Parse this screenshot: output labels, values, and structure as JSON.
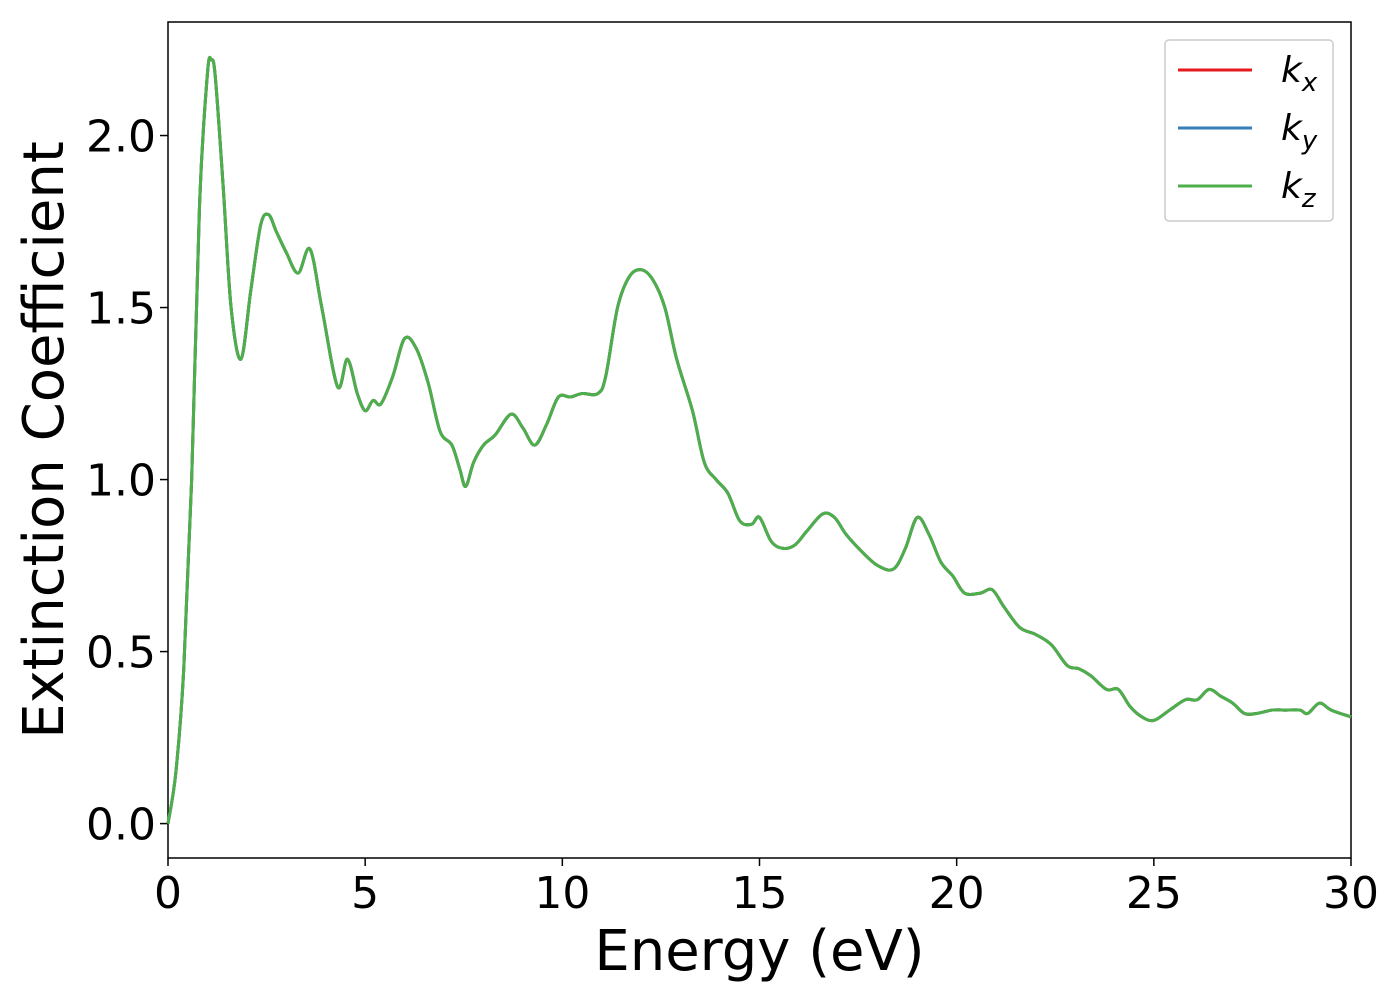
{
  "chart_data": {
    "type": "line",
    "title": "",
    "xlabel": "Energy (eV)",
    "ylabel": "Extinction Coefficient",
    "xlim": [
      0,
      30
    ],
    "ylim": [
      -0.1,
      2.33
    ],
    "xticks": [
      0,
      5,
      10,
      15,
      20,
      25,
      30
    ],
    "xtick_labels": [
      "0",
      "5",
      "10",
      "15",
      "20",
      "25",
      "30"
    ],
    "yticks": [
      0.0,
      0.5,
      1.0,
      1.5,
      2.0
    ],
    "ytick_labels": [
      "0.0",
      "0.5",
      "1.0",
      "1.5",
      "2.0"
    ],
    "grid": false,
    "legend_position": "top-right",
    "x": [
      0,
      0.2,
      0.4,
      0.6,
      0.8,
      1.0,
      1.1,
      1.2,
      1.4,
      1.6,
      1.85,
      2.1,
      2.35,
      2.55,
      2.75,
      3.0,
      3.3,
      3.6,
      3.9,
      4.3,
      4.55,
      4.8,
      5.0,
      5.2,
      5.4,
      5.7,
      6.0,
      6.3,
      6.6,
      6.9,
      7.2,
      7.4,
      7.55,
      7.75,
      8.0,
      8.3,
      8.7,
      9.0,
      9.3,
      9.6,
      9.9,
      10.2,
      10.5,
      10.9,
      11.1,
      11.4,
      11.7,
      12.0,
      12.3,
      12.6,
      12.9,
      13.3,
      13.6,
      13.9,
      14.2,
      14.5,
      14.8,
      15.0,
      15.3,
      15.6,
      15.9,
      16.2,
      16.6,
      16.9,
      17.2,
      17.6,
      18.0,
      18.4,
      18.7,
      19.0,
      19.3,
      19.6,
      19.9,
      20.2,
      20.6,
      20.9,
      21.2,
      21.6,
      22.0,
      22.4,
      22.8,
      23.1,
      23.4,
      23.8,
      24.1,
      24.4,
      24.7,
      25.0,
      25.4,
      25.8,
      26.1,
      26.4,
      26.7,
      27.0,
      27.3,
      27.6,
      28.0,
      28.3,
      28.7,
      28.9,
      29.2,
      29.5,
      30.0
    ],
    "series": [
      {
        "name": "k_x",
        "color": "#e41a1c",
        "values": [
          0.0,
          0.15,
          0.45,
          1.0,
          1.8,
          2.18,
          2.22,
          2.17,
          1.85,
          1.5,
          1.35,
          1.55,
          1.74,
          1.77,
          1.72,
          1.66,
          1.6,
          1.67,
          1.5,
          1.27,
          1.35,
          1.25,
          1.2,
          1.23,
          1.22,
          1.3,
          1.41,
          1.38,
          1.28,
          1.14,
          1.1,
          1.03,
          0.98,
          1.05,
          1.1,
          1.13,
          1.19,
          1.15,
          1.1,
          1.16,
          1.24,
          1.24,
          1.25,
          1.25,
          1.3,
          1.5,
          1.59,
          1.61,
          1.58,
          1.5,
          1.35,
          1.2,
          1.05,
          1.0,
          0.96,
          0.88,
          0.87,
          0.89,
          0.82,
          0.8,
          0.81,
          0.85,
          0.9,
          0.89,
          0.84,
          0.79,
          0.75,
          0.74,
          0.8,
          0.89,
          0.84,
          0.76,
          0.72,
          0.67,
          0.67,
          0.68,
          0.63,
          0.57,
          0.55,
          0.52,
          0.46,
          0.45,
          0.43,
          0.39,
          0.39,
          0.34,
          0.31,
          0.3,
          0.33,
          0.36,
          0.36,
          0.39,
          0.37,
          0.35,
          0.32,
          0.32,
          0.33,
          0.33,
          0.33,
          0.32,
          0.35,
          0.33,
          0.31
        ]
      },
      {
        "name": "k_y",
        "color": "#377eb8",
        "values": [
          0.0,
          0.15,
          0.45,
          1.0,
          1.8,
          2.18,
          2.22,
          2.17,
          1.85,
          1.5,
          1.35,
          1.55,
          1.74,
          1.77,
          1.72,
          1.66,
          1.6,
          1.67,
          1.5,
          1.27,
          1.35,
          1.25,
          1.2,
          1.23,
          1.22,
          1.3,
          1.41,
          1.38,
          1.28,
          1.14,
          1.1,
          1.03,
          0.98,
          1.05,
          1.1,
          1.13,
          1.19,
          1.15,
          1.1,
          1.16,
          1.24,
          1.24,
          1.25,
          1.25,
          1.3,
          1.5,
          1.59,
          1.61,
          1.58,
          1.5,
          1.35,
          1.2,
          1.05,
          1.0,
          0.96,
          0.88,
          0.87,
          0.89,
          0.82,
          0.8,
          0.81,
          0.85,
          0.9,
          0.89,
          0.84,
          0.79,
          0.75,
          0.74,
          0.8,
          0.89,
          0.84,
          0.76,
          0.72,
          0.67,
          0.67,
          0.68,
          0.63,
          0.57,
          0.55,
          0.52,
          0.46,
          0.45,
          0.43,
          0.39,
          0.39,
          0.34,
          0.31,
          0.3,
          0.33,
          0.36,
          0.36,
          0.39,
          0.37,
          0.35,
          0.32,
          0.32,
          0.33,
          0.33,
          0.33,
          0.32,
          0.35,
          0.33,
          0.31
        ]
      },
      {
        "name": "k_z",
        "color": "#4daf4a",
        "values": [
          0.0,
          0.15,
          0.45,
          1.0,
          1.8,
          2.18,
          2.22,
          2.17,
          1.85,
          1.5,
          1.35,
          1.55,
          1.74,
          1.77,
          1.72,
          1.66,
          1.6,
          1.67,
          1.5,
          1.27,
          1.35,
          1.25,
          1.2,
          1.23,
          1.22,
          1.3,
          1.41,
          1.38,
          1.28,
          1.14,
          1.1,
          1.03,
          0.98,
          1.05,
          1.1,
          1.13,
          1.19,
          1.15,
          1.1,
          1.16,
          1.24,
          1.24,
          1.25,
          1.25,
          1.3,
          1.5,
          1.59,
          1.61,
          1.58,
          1.5,
          1.35,
          1.2,
          1.05,
          1.0,
          0.96,
          0.88,
          0.87,
          0.89,
          0.82,
          0.8,
          0.81,
          0.85,
          0.9,
          0.89,
          0.84,
          0.79,
          0.75,
          0.74,
          0.8,
          0.89,
          0.84,
          0.76,
          0.72,
          0.67,
          0.67,
          0.68,
          0.63,
          0.57,
          0.55,
          0.52,
          0.46,
          0.45,
          0.43,
          0.39,
          0.39,
          0.34,
          0.31,
          0.3,
          0.33,
          0.36,
          0.36,
          0.39,
          0.37,
          0.35,
          0.32,
          0.32,
          0.33,
          0.33,
          0.33,
          0.32,
          0.35,
          0.33,
          0.31
        ]
      }
    ],
    "legend": {
      "entries": [
        {
          "base": "k",
          "sub": "x",
          "color": "#e41a1c"
        },
        {
          "base": "k",
          "sub": "y",
          "color": "#377eb8"
        },
        {
          "base": "k",
          "sub": "z",
          "color": "#4daf4a"
        }
      ]
    }
  }
}
